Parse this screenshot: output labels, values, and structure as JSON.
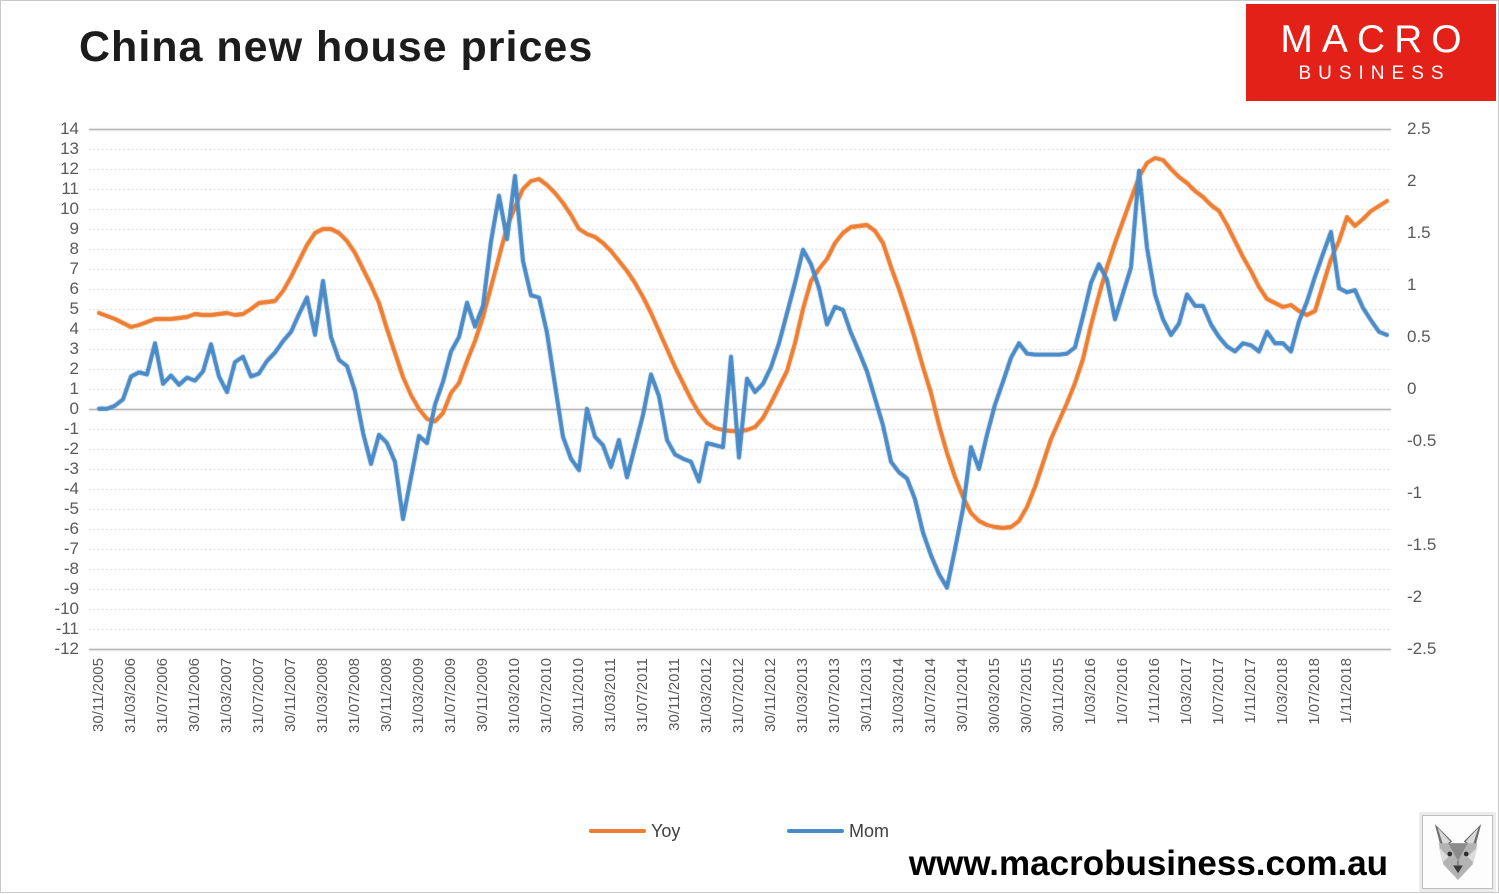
{
  "title": "China new house prices",
  "logo": {
    "line1": "MACRO",
    "line2": "BUSINESS",
    "bg_color": "#e32119"
  },
  "watermark": "www.macrobusiness.com.au",
  "legend": [
    {
      "label": "Yoy",
      "color": "#ED7D31"
    },
    {
      "label": "Mom",
      "color": "#4A8AC7"
    }
  ],
  "chart_data": {
    "type": "line",
    "title": "China new house prices",
    "grid": "horizontal dotted, solid at top/zero/bottom",
    "legend_position": "bottom",
    "left_axis": {
      "min": -12,
      "max": 14,
      "step": 1,
      "tick_labels": [
        "14",
        "13",
        "12",
        "11",
        "10",
        "9",
        "8",
        "7",
        "6",
        "5",
        "4",
        "3",
        "2",
        "1",
        "0",
        "-1",
        "-2",
        "-3",
        "-4",
        "-5",
        "-6",
        "-7",
        "-8",
        "-9",
        "-10",
        "-11",
        "-12"
      ]
    },
    "right_axis": {
      "min": -2.5,
      "max": 2.5,
      "step": 0.5,
      "tick_labels": [
        "2.5",
        "2",
        "1.5",
        "1",
        "0.5",
        "0",
        "-0.5",
        "-1",
        "-1.5",
        "-2",
        "-2.5"
      ]
    },
    "x_tick_step_months": 4,
    "x_tick_labels": [
      "30/11/2005",
      "31/03/2006",
      "31/07/2006",
      "30/11/2006",
      "31/03/2007",
      "31/07/2007",
      "30/11/2007",
      "31/03/2008",
      "31/07/2008",
      "30/11/2008",
      "31/03/2009",
      "31/07/2009",
      "30/11/2009",
      "31/03/2010",
      "31/07/2010",
      "30/11/2010",
      "31/03/2011",
      "31/07/2011",
      "30/11/2011",
      "31/03/2012",
      "31/07/2012",
      "30/11/2012",
      "31/03/2013",
      "31/07/2013",
      "30/11/2013",
      "31/03/2014",
      "31/07/2014",
      "30/11/2014",
      "30/03/2015",
      "30/07/2015",
      "30/11/2015",
      "1/03/2016",
      "1/07/2016",
      "1/11/2016",
      "1/03/2017",
      "1/07/2017",
      "1/11/2017",
      "1/03/2018",
      "1/07/2018",
      "1/11/2018"
    ],
    "series": [
      {
        "name": "Yoy",
        "axis": "left",
        "color": "#ED7D31",
        "values": [
          4.8,
          4.65,
          4.5,
          4.3,
          4.1,
          4.2,
          4.35,
          4.5,
          4.5,
          4.5,
          4.55,
          4.6,
          4.75,
          4.7,
          4.7,
          4.75,
          4.8,
          4.7,
          4.75,
          5.0,
          5.3,
          5.35,
          5.4,
          5.9,
          6.6,
          7.4,
          8.2,
          8.8,
          9.0,
          9.0,
          8.8,
          8.4,
          7.8,
          7.0,
          6.2,
          5.3,
          4.0,
          2.8,
          1.6,
          0.7,
          0.0,
          -0.5,
          -0.62,
          -0.2,
          0.8,
          1.3,
          2.4,
          3.4,
          4.6,
          6.1,
          7.6,
          9.1,
          10.1,
          11.0,
          11.4,
          11.5,
          11.2,
          10.8,
          10.3,
          9.7,
          9.0,
          8.75,
          8.6,
          8.3,
          7.9,
          7.4,
          6.9,
          6.3,
          5.6,
          4.8,
          3.9,
          3.0,
          2.1,
          1.3,
          0.5,
          -0.2,
          -0.7,
          -0.95,
          -1.05,
          -1.1,
          -1.1,
          -1.05,
          -0.9,
          -0.45,
          0.3,
          1.1,
          1.9,
          3.3,
          5.0,
          6.4,
          7.0,
          7.5,
          8.3,
          8.8,
          9.1,
          9.15,
          9.2,
          8.9,
          8.3,
          7.1,
          6.0,
          4.8,
          3.5,
          2.1,
          0.8,
          -0.8,
          -2.2,
          -3.4,
          -4.4,
          -5.2,
          -5.6,
          -5.8,
          -5.9,
          -5.95,
          -5.9,
          -5.6,
          -4.9,
          -3.9,
          -2.7,
          -1.5,
          -0.6,
          0.3,
          1.3,
          2.5,
          4.2,
          5.7,
          7.1,
          8.3,
          9.4,
          10.5,
          11.6,
          12.3,
          12.55,
          12.45,
          12.0,
          11.6,
          11.3,
          10.9,
          10.6,
          10.2,
          9.9,
          9.2,
          8.4,
          7.6,
          6.9,
          6.1,
          5.5,
          5.3,
          5.1,
          5.2,
          4.9,
          4.7,
          4.9,
          6.2,
          7.5,
          8.4,
          9.6,
          9.15,
          9.5,
          9.9,
          10.15,
          10.4
        ]
      },
      {
        "name": "Mom",
        "axis": "right",
        "color": "#4A8AC7",
        "values": [
          -0.19,
          -0.19,
          -0.16,
          -0.1,
          0.12,
          0.16,
          0.14,
          0.44,
          0.05,
          0.13,
          0.04,
          0.11,
          0.08,
          0.17,
          0.43,
          0.12,
          -0.03,
          0.26,
          0.31,
          0.12,
          0.15,
          0.27,
          0.35,
          0.46,
          0.55,
          0.72,
          0.88,
          0.52,
          1.04,
          0.5,
          0.28,
          0.22,
          -0.02,
          -0.42,
          -0.72,
          -0.44,
          -0.52,
          -0.7,
          -1.25,
          -0.85,
          -0.45,
          -0.52,
          -0.15,
          0.07,
          0.36,
          0.5,
          0.83,
          0.6,
          0.8,
          1.42,
          1.86,
          1.44,
          2.05,
          1.23,
          0.9,
          0.88,
          0.54,
          0.04,
          -0.46,
          -0.67,
          -0.78,
          -0.19,
          -0.46,
          -0.54,
          -0.75,
          -0.49,
          -0.85,
          -0.55,
          -0.25,
          0.14,
          -0.07,
          -0.49,
          -0.63,
          -0.67,
          -0.7,
          -0.89,
          -0.52,
          -0.54,
          -0.56,
          0.31,
          -0.66,
          0.1,
          -0.03,
          0.05,
          0.21,
          0.44,
          0.73,
          1.02,
          1.34,
          1.2,
          0.97,
          0.62,
          0.79,
          0.76,
          0.54,
          0.36,
          0.17,
          -0.09,
          -0.35,
          -0.7,
          -0.8,
          -0.86,
          -1.06,
          -1.38,
          -1.6,
          -1.78,
          -1.91,
          -1.54,
          -1.15,
          -0.56,
          -0.77,
          -0.44,
          -0.15,
          0.07,
          0.3,
          0.44,
          0.34,
          0.33,
          0.33,
          0.33,
          0.33,
          0.34,
          0.4,
          0.7,
          1.02,
          1.2,
          1.05,
          0.67,
          0.92,
          1.17,
          2.1,
          1.36,
          0.91,
          0.67,
          0.52,
          0.63,
          0.91,
          0.8,
          0.8,
          0.62,
          0.5,
          0.41,
          0.36,
          0.44,
          0.42,
          0.36,
          0.55,
          0.44,
          0.44,
          0.36,
          0.65,
          0.84,
          1.08,
          1.3,
          1.51,
          0.97,
          0.93,
          0.95,
          0.78,
          0.66,
          0.55,
          0.52
        ]
      }
    ]
  }
}
